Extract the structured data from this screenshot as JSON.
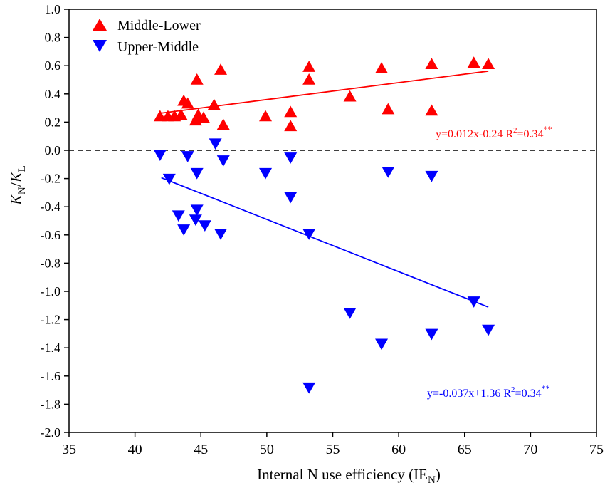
{
  "chart_data": {
    "type": "scatter",
    "xlabel": "Internal N use efficiency (IE",
    "xlabel_sub": "N",
    "xlabel_end": ")",
    "ylabel": {
      "k1": "K",
      "s1": "N",
      "slash": "/",
      "k2": "K",
      "s2": "L"
    },
    "xlim": [
      35,
      75
    ],
    "ylim": [
      -2.0,
      1.0
    ],
    "xticks": [
      "35",
      "40",
      "45",
      "50",
      "55",
      "60",
      "65",
      "70",
      "75"
    ],
    "yticks": [
      "1.0",
      "0.8",
      "0.6",
      "0.4",
      "0.2",
      "0.0",
      "-0.2",
      "-0.4",
      "-0.6",
      "-0.8",
      "-1.0",
      "-1.2",
      "-1.4",
      "-1.6",
      "-1.8",
      "-2.0"
    ],
    "reference_line": {
      "y": 0,
      "style": "dashed"
    },
    "legend_position": "top-left",
    "series": [
      {
        "name": "Middle-Lower",
        "color": "#ff0000",
        "marker": "triangle-up",
        "points": [
          [
            41.9,
            0.24
          ],
          [
            42.5,
            0.24
          ],
          [
            43.0,
            0.24
          ],
          [
            43.5,
            0.25
          ],
          [
            43.7,
            0.35
          ],
          [
            44.0,
            0.33
          ],
          [
            44.6,
            0.21
          ],
          [
            44.7,
            0.5
          ],
          [
            44.8,
            0.25
          ],
          [
            45.2,
            0.23
          ],
          [
            46.0,
            0.32
          ],
          [
            46.5,
            0.57
          ],
          [
            46.7,
            0.18
          ],
          [
            49.9,
            0.24
          ],
          [
            51.8,
            0.27
          ],
          [
            51.8,
            0.17
          ],
          [
            53.2,
            0.59
          ],
          [
            53.2,
            0.5
          ],
          [
            56.3,
            0.38
          ],
          [
            58.7,
            0.58
          ],
          [
            59.2,
            0.29
          ],
          [
            62.5,
            0.61
          ],
          [
            62.5,
            0.28
          ],
          [
            65.7,
            0.62
          ],
          [
            66.8,
            0.61
          ]
        ],
        "fit": {
          "slope": 0.012,
          "intercept": -0.24,
          "x_range": [
            42,
            66.8
          ]
        },
        "equation": "y=0.012x-0.24  R",
        "eq_sup": "2",
        "eq_end": "=0.34",
        "sig": "**"
      },
      {
        "name": "Upper-Middle",
        "color": "#0000ff",
        "marker": "triangle-down",
        "points": [
          [
            41.9,
            -0.03
          ],
          [
            42.6,
            -0.2
          ],
          [
            43.3,
            -0.46
          ],
          [
            43.7,
            -0.56
          ],
          [
            44.0,
            -0.04
          ],
          [
            44.7,
            -0.16
          ],
          [
            44.7,
            -0.42
          ],
          [
            44.6,
            -0.49
          ],
          [
            45.3,
            -0.53
          ],
          [
            46.1,
            0.05
          ],
          [
            46.5,
            -0.59
          ],
          [
            46.7,
            -0.07
          ],
          [
            49.9,
            -0.16
          ],
          [
            51.8,
            -0.05
          ],
          [
            51.8,
            -0.33
          ],
          [
            53.2,
            -0.59
          ],
          [
            53.2,
            -1.68
          ],
          [
            56.3,
            -1.15
          ],
          [
            58.7,
            -1.37
          ],
          [
            59.2,
            -0.15
          ],
          [
            62.5,
            -0.18
          ],
          [
            62.5,
            -1.3
          ],
          [
            65.7,
            -1.07
          ],
          [
            66.8,
            -1.27
          ]
        ],
        "fit": {
          "slope": -0.037,
          "intercept": 1.36,
          "x_range": [
            42,
            66.8
          ]
        },
        "equation": "y=-0.037x+1.36 R",
        "eq_sup": "2",
        "eq_end": "=0.34",
        "sig": "**"
      }
    ]
  }
}
